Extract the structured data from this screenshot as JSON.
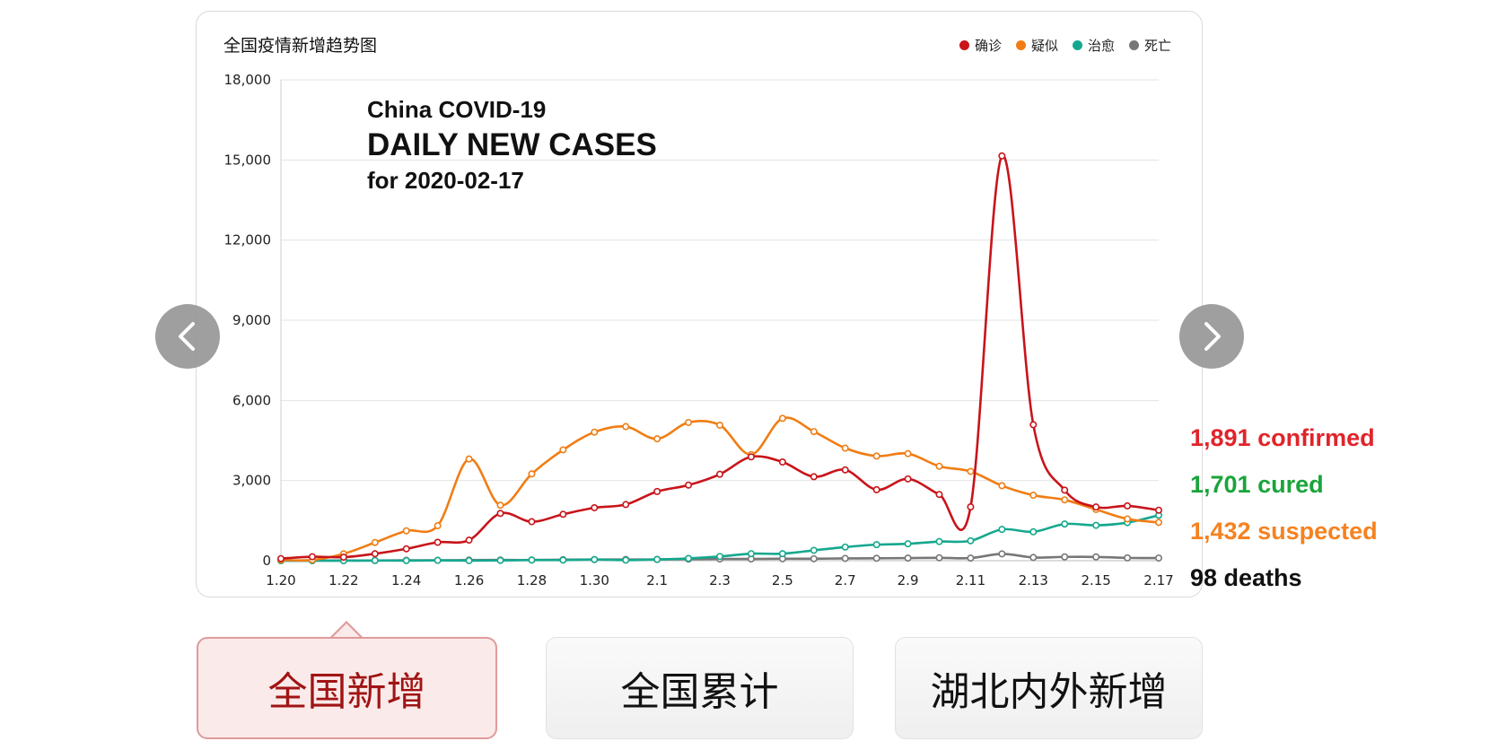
{
  "chart_data": {
    "type": "line",
    "title": "全国疫情新增趋势图",
    "overlay": {
      "line1": "China COVID-19",
      "line2": "DAILY NEW CASES",
      "line3": "for 2020-02-17"
    },
    "ylim": [
      0,
      18000
    ],
    "yticks": [
      0,
      3000,
      6000,
      9000,
      12000,
      15000,
      18000
    ],
    "ytick_labels": [
      "0",
      "3,000",
      "6,000",
      "9,000",
      "12,000",
      "15,000",
      "18,000"
    ],
    "x": [
      "1.20",
      "1.21",
      "1.22",
      "1.23",
      "1.24",
      "1.25",
      "1.26",
      "1.27",
      "1.28",
      "1.29",
      "1.30",
      "1.31",
      "2.1",
      "2.2",
      "2.3",
      "2.4",
      "2.5",
      "2.6",
      "2.7",
      "2.8",
      "2.9",
      "2.10",
      "2.11",
      "2.12",
      "2.13",
      "2.14",
      "2.15",
      "2.16",
      "2.17"
    ],
    "xtick_labels": [
      "1.20",
      "1.22",
      "1.24",
      "1.26",
      "1.28",
      "1.30",
      "2.1",
      "2.3",
      "2.5",
      "2.7",
      "2.9",
      "2.11",
      "2.13",
      "2.15",
      "2.17"
    ],
    "grid": true,
    "legend_position": "top-right",
    "series": [
      {
        "name": "确诊",
        "color": "#c8141a",
        "values": [
          77,
          149,
          131,
          259,
          444,
          688,
          769,
          1771,
          1459,
          1737,
          1982,
          2102,
          2590,
          2829,
          3235,
          3887,
          3694,
          3143,
          3399,
          2656,
          3062,
          2478,
          2015,
          15152,
          5090,
          2641,
          2009,
          2051,
          1891
        ]
      },
      {
        "name": "疑似",
        "color": "#f07d14",
        "values": [
          27,
          26,
          257,
          680,
          1118,
          1309,
          3806,
          2077,
          3248,
          4148,
          4812,
          5019,
          4562,
          5173,
          5072,
          3971,
          5328,
          4833,
          4214,
          3916,
          4008,
          3536,
          3342,
          2807,
          2450,
          2277,
          1918,
          1563,
          1432
        ]
      },
      {
        "name": "治愈",
        "color": "#15a88e",
        "values": [
          0,
          0,
          0,
          6,
          3,
          11,
          2,
          9,
          24,
          22,
          43,
          21,
          47,
          85,
          157,
          262,
          261,
          387,
          510,
          600,
          632,
          716,
          744,
          1171,
          1081,
          1373,
          1323,
          1425,
          1701
        ]
      },
      {
        "name": "死亡",
        "color": "#777777",
        "values": [
          0,
          3,
          8,
          8,
          16,
          15,
          24,
          26,
          26,
          38,
          43,
          46,
          45,
          57,
          64,
          65,
          73,
          73,
          86,
          89,
          97,
          108,
          97,
          254,
          121,
          143,
          142,
          105,
          98
        ]
      }
    ]
  },
  "summary": [
    {
      "text": "1,891 confirmed",
      "color": "#e0242b"
    },
    {
      "text": "1,701 cured",
      "color": "#1aa43a"
    },
    {
      "text": "1,432 suspected",
      "color": "#f58220"
    },
    {
      "text": "98 deaths",
      "color": "#111111"
    }
  ],
  "tabs": [
    {
      "label": "全国新增"
    },
    {
      "label": "全国累计"
    },
    {
      "label": "湖北内外新增"
    }
  ],
  "nav": {
    "prev_icon": "chevron-left-icon",
    "next_icon": "chevron-right-icon"
  }
}
